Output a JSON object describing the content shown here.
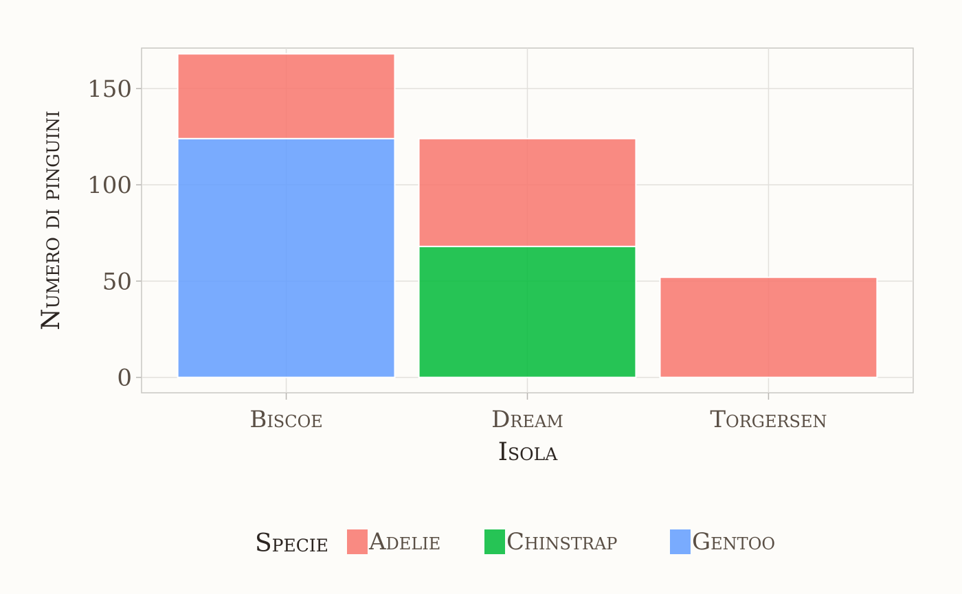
{
  "chart_data": {
    "type": "bar",
    "stacked": true,
    "categories": [
      "Biscoe",
      "Dream",
      "Torgersen"
    ],
    "series": [
      {
        "name": "Adelie",
        "color": "#f8766d",
        "values": [
          44,
          56,
          52
        ]
      },
      {
        "name": "Chinstrap",
        "color": "#00ba38",
        "values": [
          0,
          68,
          0
        ]
      },
      {
        "name": "Gentoo",
        "color": "#619cff",
        "values": [
          124,
          0,
          0
        ]
      }
    ],
    "stack_order_bottom_to_top": [
      "Gentoo",
      "Chinstrap",
      "Adelie"
    ],
    "xlabel": "Isola",
    "ylabel": "Numero di pinguini",
    "yticks": [
      0,
      50,
      100,
      150
    ],
    "ylim": [
      -8,
      171
    ],
    "grid": true,
    "legend": {
      "title": "Specie",
      "position": "bottom"
    }
  }
}
